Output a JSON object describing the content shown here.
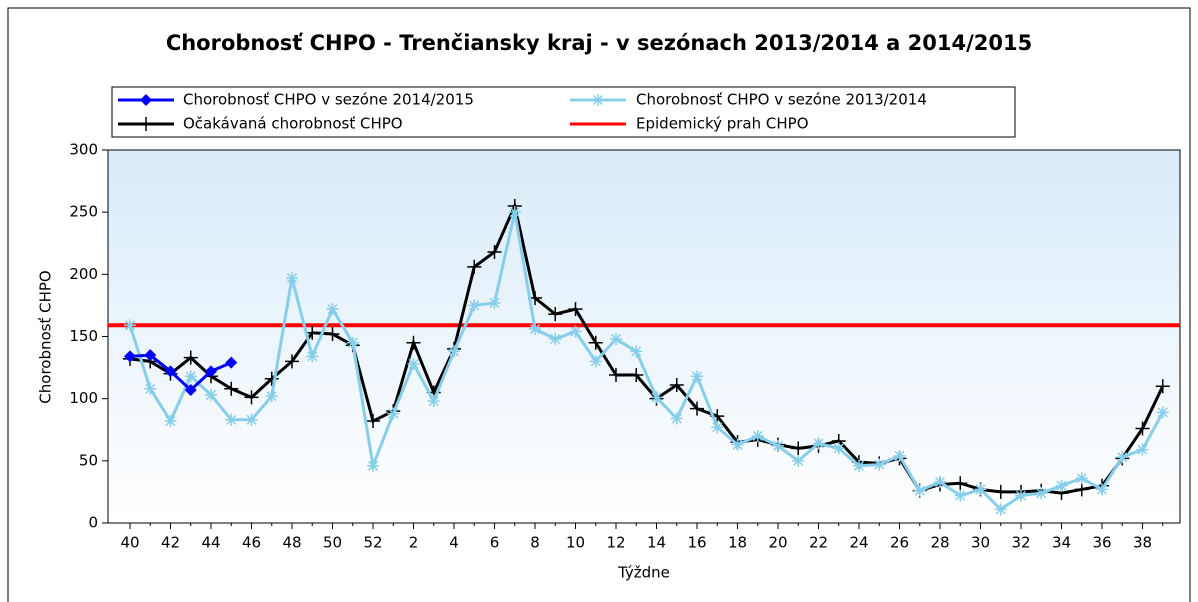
{
  "chart_data": {
    "type": "line",
    "title": "Chorobnosť CHPO - Trenčiansky kraj - v sezónach 2013/2014 a 2014/2015",
    "y_label": "Chorobnosť CHPO",
    "x_label": "Týždne",
    "categories": [
      "40",
      null,
      "42",
      null,
      "44",
      null,
      "46",
      null,
      "48",
      null,
      "50",
      null,
      "52",
      null,
      "2",
      null,
      "4",
      null,
      "6",
      null,
      "8",
      null,
      "10",
      null,
      "12",
      null,
      "14",
      null,
      "16",
      null,
      "18",
      null,
      "20",
      null,
      "22",
      null,
      "24",
      null,
      "26",
      null,
      "28",
      null,
      "30",
      null,
      "32",
      null,
      "34",
      null,
      "36",
      null,
      "38",
      null
    ],
    "ylim": [
      0,
      300
    ],
    "yticks": [
      0,
      50,
      100,
      150,
      200,
      250,
      300
    ],
    "series": [
      {
        "name": "Chorobnosť CHPO v sezóne 2014/2015",
        "color": "#0000ff",
        "marker": "diamond",
        "values": [
          134,
          135,
          122,
          107,
          122,
          129,
          null,
          null,
          null,
          null,
          null,
          null,
          null,
          null,
          null,
          null,
          null,
          null,
          null,
          null,
          null,
          null,
          null,
          null,
          null,
          null,
          null,
          null,
          null,
          null,
          null,
          null,
          null,
          null,
          null,
          null,
          null,
          null,
          null,
          null,
          null,
          null,
          null,
          null,
          null,
          null,
          null,
          null,
          null,
          null,
          null,
          null
        ]
      },
      {
        "name": "Chorobnosť CHPO v sezóne 2013/2014",
        "color": "#87ceeb",
        "marker": "asterisk",
        "values": [
          159,
          108,
          82,
          118,
          103,
          83,
          83,
          102,
          197,
          134,
          172,
          145,
          46,
          88,
          128,
          98,
          138,
          175,
          177,
          250,
          156,
          148,
          154,
          130,
          148,
          138,
          101,
          84,
          118,
          77,
          63,
          70,
          62,
          50,
          64,
          60,
          46,
          47,
          54,
          26,
          33,
          22,
          27,
          11,
          22,
          24,
          30,
          36,
          27,
          53,
          59,
          89
        ]
      },
      {
        "name": "Očakávaná chorobnosť CHPO",
        "color": "#000000",
        "marker": "plus",
        "values": [
          132,
          130,
          120,
          133,
          118,
          108,
          101,
          116,
          130,
          153,
          152,
          143,
          82,
          90,
          145,
          105,
          140,
          206,
          218,
          255,
          181,
          168,
          172,
          145,
          119,
          119,
          100,
          111,
          92,
          86,
          65,
          67,
          63,
          60,
          62,
          66,
          49,
          48,
          52,
          26,
          31,
          32,
          27,
          25,
          25,
          26,
          24,
          27,
          30,
          52,
          76,
          110
        ]
      }
    ],
    "threshold": {
      "name": "Epidemický prah CHPO",
      "color": "#ff0000",
      "value": 159
    }
  }
}
